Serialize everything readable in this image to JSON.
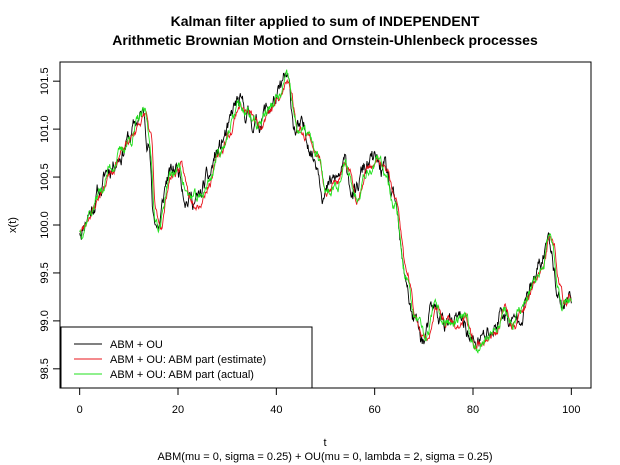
{
  "chart_data": {
    "type": "line",
    "title": [
      "Kalman filter applied to sum of INDEPENDENT",
      "Arithmetic Brownian Motion and Ornstein-Uhlenbeck processes"
    ],
    "xlabel": "t",
    "subtitle": "ABM(mu = 0, sigma = 0.25) + OU(mu = 0, lambda = 2, sigma = 0.25)",
    "ylabel": "x(t)",
    "xlim": [
      -4,
      104
    ],
    "ylim": [
      98.3,
      101.7
    ],
    "xticks": [
      0,
      20,
      40,
      60,
      80,
      100
    ],
    "xtick_labels": [
      "0",
      "20",
      "40",
      "60",
      "80",
      "100"
    ],
    "yticks": [
      98.5,
      99.0,
      99.5,
      100.0,
      100.5,
      101.0,
      101.5
    ],
    "ytick_labels": [
      "98.5",
      "99.0",
      "99.5",
      "100.0",
      "100.5",
      "101.0",
      "101.5"
    ],
    "grid": false,
    "legend_position": "bottom-left",
    "keypoints": {
      "t": [
        0,
        2,
        4,
        6,
        8,
        10,
        12,
        13,
        14,
        15,
        16,
        18,
        20,
        22,
        24,
        26,
        28,
        30,
        32,
        34,
        36,
        38,
        40,
        42,
        44,
        46,
        48,
        50,
        52,
        54,
        56,
        58,
        60,
        62,
        64,
        66,
        68,
        70,
        72,
        74,
        76,
        78,
        80,
        82,
        84,
        86,
        88,
        90,
        92,
        94,
        95,
        96,
        97,
        98,
        100
      ],
      "x": [
        99.95,
        100.15,
        100.35,
        100.6,
        100.75,
        100.9,
        101.1,
        101.15,
        100.9,
        100.1,
        100.0,
        100.5,
        100.6,
        100.3,
        100.25,
        100.45,
        100.75,
        100.95,
        101.25,
        101.15,
        101.05,
        101.2,
        101.3,
        101.5,
        101.0,
        100.95,
        100.7,
        100.35,
        100.45,
        100.6,
        100.3,
        100.6,
        100.65,
        100.55,
        100.2,
        99.5,
        99.0,
        98.8,
        99.1,
        99.0,
        98.95,
        99.0,
        98.75,
        98.8,
        98.9,
        99.1,
        98.95,
        99.15,
        99.35,
        99.6,
        99.85,
        99.75,
        99.4,
        99.2,
        99.25
      ]
    },
    "series": [
      {
        "name": "ABM + OU",
        "color": "#000000",
        "noise": 0.07,
        "lag": 0.0,
        "seed": 11
      },
      {
        "name": "ABM + OU: ABM part (estimate)",
        "color": "#e8141b",
        "noise": 0.035,
        "lag": 0.5,
        "seed": 23
      },
      {
        "name": "ABM + OU: ABM part (actual)",
        "color": "#22e21e",
        "noise": 0.045,
        "lag": 0.25,
        "seed": 37
      }
    ]
  }
}
